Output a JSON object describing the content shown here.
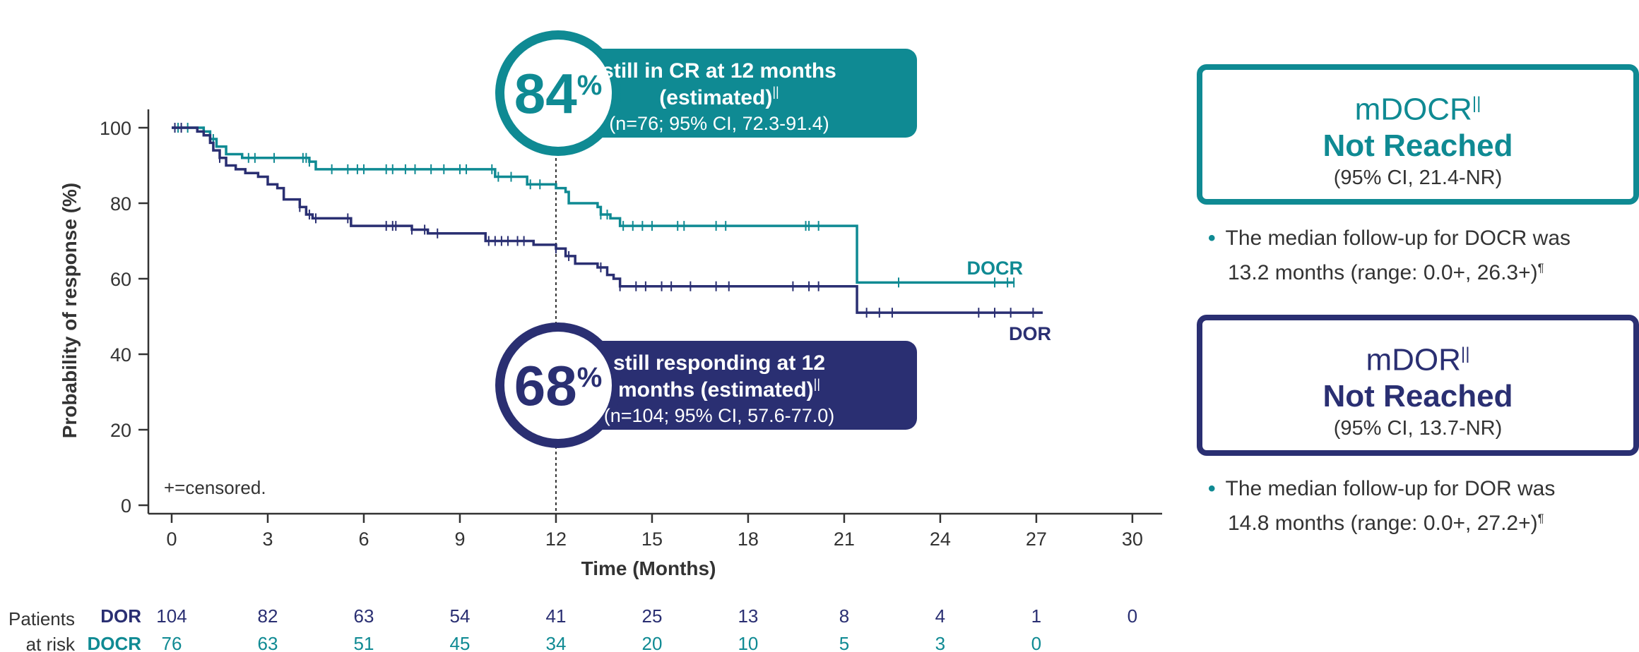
{
  "colors": {
    "dor": "#2a2f72",
    "docr": "#0f8a93",
    "axis": "#333333",
    "text": "#333333"
  },
  "chart_data": {
    "type": "line",
    "xlabel": "Time (Months)",
    "ylabel": "Probability of response (%)",
    "xlim": [
      0,
      30
    ],
    "ylim": [
      0,
      100
    ],
    "x_ticks": [
      0,
      3,
      6,
      9,
      12,
      15,
      18,
      21,
      24,
      27,
      30
    ],
    "y_ticks": [
      0,
      20,
      40,
      60,
      80,
      100
    ],
    "grid": false,
    "censored_note": "+=censored.",
    "reference_line_x": 12,
    "series": [
      {
        "name": "DOCR",
        "step": [
          [
            0,
            100
          ],
          [
            0.7,
            100
          ],
          [
            1.0,
            99
          ],
          [
            1.2,
            97
          ],
          [
            1.4,
            95
          ],
          [
            1.7,
            93
          ],
          [
            2.2,
            92
          ],
          [
            4.3,
            91
          ],
          [
            4.5,
            89
          ],
          [
            10.0,
            89
          ],
          [
            10.1,
            87
          ],
          [
            11.0,
            87
          ],
          [
            11.1,
            85
          ],
          [
            12.0,
            84
          ],
          [
            12.3,
            83
          ],
          [
            12.4,
            80
          ],
          [
            13.2,
            80
          ],
          [
            13.3,
            79
          ],
          [
            13.4,
            77
          ],
          [
            13.7,
            76
          ],
          [
            14.0,
            74
          ],
          [
            21.4,
            74
          ],
          [
            21.4,
            59
          ],
          [
            26.3,
            59
          ]
        ],
        "censor_x": [
          0.2,
          0.5,
          1.0,
          1.3,
          2.4,
          2.6,
          3.2,
          4.1,
          4.2,
          4.3,
          5.0,
          5.5,
          5.8,
          6.0,
          6.7,
          6.9,
          7.3,
          7.6,
          8.1,
          8.5,
          9.0,
          9.2,
          10.0,
          10.2,
          10.6,
          11.2,
          11.5,
          13.4,
          13.6,
          14.1,
          14.4,
          14.7,
          15.0,
          15.8,
          16.0,
          17.0,
          17.3,
          19.8,
          19.9,
          20.2,
          22.7,
          25.7,
          26.1,
          26.3
        ]
      },
      {
        "name": "DOR",
        "step": [
          [
            0,
            100
          ],
          [
            0.8,
            99
          ],
          [
            1.0,
            98
          ],
          [
            1.2,
            96
          ],
          [
            1.3,
            94
          ],
          [
            1.5,
            92
          ],
          [
            1.7,
            90
          ],
          [
            2.0,
            89
          ],
          [
            2.3,
            88
          ],
          [
            2.7,
            87
          ],
          [
            3.0,
            85
          ],
          [
            3.3,
            84
          ],
          [
            3.5,
            81
          ],
          [
            4.0,
            79
          ],
          [
            4.2,
            77
          ],
          [
            4.4,
            76
          ],
          [
            5.5,
            76
          ],
          [
            5.6,
            74
          ],
          [
            7.0,
            74
          ],
          [
            7.5,
            73
          ],
          [
            8.0,
            72
          ],
          [
            9.7,
            72
          ],
          [
            9.8,
            70
          ],
          [
            11.2,
            70
          ],
          [
            11.3,
            69
          ],
          [
            12.0,
            68
          ],
          [
            12.3,
            66
          ],
          [
            12.6,
            64
          ],
          [
            13.3,
            63
          ],
          [
            13.6,
            61
          ],
          [
            13.8,
            60
          ],
          [
            14.0,
            58
          ],
          [
            21.4,
            58
          ],
          [
            21.4,
            51
          ],
          [
            27.2,
            51
          ]
        ],
        "censor_x": [
          0.1,
          0.3,
          1.5,
          4.0,
          4.3,
          4.5,
          5.5,
          6.7,
          6.9,
          7.0,
          7.5,
          7.9,
          8.3,
          9.9,
          10.1,
          10.3,
          10.5,
          10.8,
          11.0,
          12.0,
          12.4,
          13.4,
          14.0,
          14.5,
          14.8,
          15.3,
          15.6,
          16.2,
          17.0,
          17.4,
          19.4,
          19.9,
          20.2,
          21.7,
          22.1,
          22.5,
          25.2,
          25.7,
          26.2,
          26.9
        ]
      }
    ]
  },
  "callouts": {
    "docr": {
      "percent": "84",
      "symbol": "%",
      "line1": "still in CR at 12 months",
      "line2": "(estimated)",
      "mark": "||",
      "line3": "(n=76; 95% CI, 72.3-91.4)"
    },
    "dor": {
      "percent": "68",
      "symbol": "%",
      "line1": "still responding at 12",
      "line2": "months (estimated)",
      "mark": "||",
      "line3": "(n=104; 95% CI, 57.6-77.0)"
    }
  },
  "risk_table": {
    "label_line1": "Patients",
    "label_line2": "at risk",
    "rows": [
      {
        "name": "DOR",
        "values": [
          "104",
          "82",
          "63",
          "54",
          "41",
          "25",
          "13",
          "8",
          "4",
          "1",
          "0"
        ]
      },
      {
        "name": "DOCR",
        "values": [
          "76",
          "63",
          "51",
          "45",
          "34",
          "20",
          "10",
          "5",
          "3",
          "0"
        ]
      }
    ]
  },
  "summary": {
    "docr": {
      "title": "mDOCR",
      "mark": "||",
      "value": "Not Reached",
      "ci": "(95% CI, 21.4-NR)",
      "bullet_line1": "The median follow-up for DOCR was",
      "bullet_line2": "13.2 months (range: 0.0+, 26.3+)",
      "bullet_mark": "¶"
    },
    "dor": {
      "title": "mDOR",
      "mark": "||",
      "value": "Not Reached",
      "ci": "(95% CI, 13.7-NR)",
      "bullet_line1": "The median follow-up for DOR was",
      "bullet_line2": "14.8 months (range: 0.0+, 27.2+)",
      "bullet_mark": "¶"
    }
  }
}
